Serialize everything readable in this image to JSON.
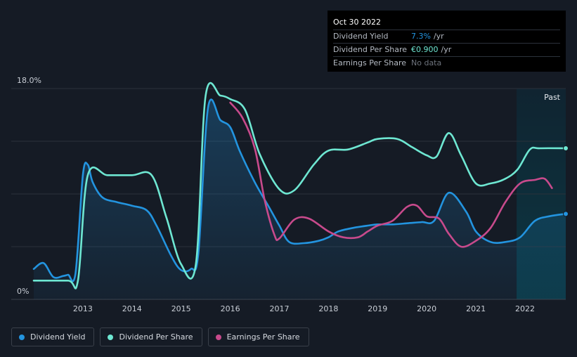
{
  "chart_data": {
    "type": "line",
    "y_axis": {
      "min": 0,
      "max": 18,
      "top_label": "18.0%",
      "bottom_label": "0%"
    },
    "x_ticks": [
      "2013",
      "2014",
      "2015",
      "2016",
      "2017",
      "2018",
      "2019",
      "2020",
      "2021",
      "2022"
    ],
    "x_range": [
      2012.0,
      2022.83
    ],
    "past_label": "Past",
    "forecast_start": 2021.83,
    "series": [
      {
        "name": "Dividend Yield",
        "key": "dividend_yield",
        "color": "#2394df",
        "area": true,
        "points": [
          [
            2012.0,
            2.6
          ],
          [
            2012.2,
            3.1
          ],
          [
            2012.4,
            1.9
          ],
          [
            2012.6,
            2.0
          ],
          [
            2012.7,
            2.1
          ],
          [
            2012.85,
            2.2
          ],
          [
            2013.0,
            10.6
          ],
          [
            2013.1,
            11.5
          ],
          [
            2013.2,
            10.0
          ],
          [
            2013.4,
            8.7
          ],
          [
            2013.7,
            8.3
          ],
          [
            2014.0,
            8.0
          ],
          [
            2014.3,
            7.6
          ],
          [
            2014.5,
            6.3
          ],
          [
            2014.8,
            3.7
          ],
          [
            2015.0,
            2.5
          ],
          [
            2015.2,
            2.6
          ],
          [
            2015.35,
            3.9
          ],
          [
            2015.55,
            16.4
          ],
          [
            2015.8,
            15.3
          ],
          [
            2016.0,
            14.7
          ],
          [
            2016.2,
            12.6
          ],
          [
            2016.5,
            10.0
          ],
          [
            2016.8,
            7.8
          ],
          [
            2017.0,
            6.3
          ],
          [
            2017.2,
            4.9
          ],
          [
            2017.5,
            4.8
          ],
          [
            2017.8,
            5.0
          ],
          [
            2018.0,
            5.3
          ],
          [
            2018.2,
            5.8
          ],
          [
            2018.5,
            6.1
          ],
          [
            2018.8,
            6.3
          ],
          [
            2019.0,
            6.4
          ],
          [
            2019.3,
            6.4
          ],
          [
            2019.6,
            6.5
          ],
          [
            2019.9,
            6.6
          ],
          [
            2020.15,
            6.7
          ],
          [
            2020.45,
            9.1
          ],
          [
            2020.8,
            7.5
          ],
          [
            2021.0,
            5.8
          ],
          [
            2021.3,
            4.9
          ],
          [
            2021.6,
            4.9
          ],
          [
            2021.9,
            5.3
          ],
          [
            2022.2,
            6.7
          ],
          [
            2022.5,
            7.1
          ],
          [
            2022.83,
            7.3
          ]
        ]
      },
      {
        "name": "Dividend Per Share",
        "key": "dividend_per_share",
        "color": "#6ee7d2",
        "area": false,
        "points": [
          [
            2012.0,
            1.6
          ],
          [
            2012.7,
            1.6
          ],
          [
            2012.9,
            1.6
          ],
          [
            2013.1,
            10.6
          ],
          [
            2013.5,
            10.6
          ],
          [
            2014.0,
            10.6
          ],
          [
            2014.4,
            10.6
          ],
          [
            2014.7,
            7.0
          ],
          [
            2015.0,
            3.0
          ],
          [
            2015.3,
            3.0
          ],
          [
            2015.5,
            17.4
          ],
          [
            2015.8,
            17.4
          ],
          [
            2016.0,
            17.1
          ],
          [
            2016.3,
            16.2
          ],
          [
            2016.6,
            12.4
          ],
          [
            2017.0,
            9.4
          ],
          [
            2017.3,
            9.3
          ],
          [
            2017.7,
            11.5
          ],
          [
            2018.0,
            12.7
          ],
          [
            2018.4,
            12.8
          ],
          [
            2018.8,
            13.4
          ],
          [
            2019.0,
            13.7
          ],
          [
            2019.4,
            13.7
          ],
          [
            2019.7,
            13.0
          ],
          [
            2020.0,
            12.3
          ],
          [
            2020.2,
            12.2
          ],
          [
            2020.45,
            14.2
          ],
          [
            2020.7,
            12.3
          ],
          [
            2021.0,
            9.9
          ],
          [
            2021.3,
            9.9
          ],
          [
            2021.6,
            10.3
          ],
          [
            2021.85,
            11.1
          ],
          [
            2022.1,
            12.8
          ],
          [
            2022.3,
            12.9
          ],
          [
            2022.83,
            12.9
          ]
        ]
      },
      {
        "name": "Earnings Per Share",
        "key": "earnings_per_share",
        "color": "#c84a8c",
        "area": false,
        "points": [
          [
            2016.0,
            16.8
          ],
          [
            2016.25,
            15.5
          ],
          [
            2016.5,
            12.9
          ],
          [
            2016.7,
            8.5
          ],
          [
            2016.9,
            5.5
          ],
          [
            2017.0,
            5.2
          ],
          [
            2017.3,
            6.8
          ],
          [
            2017.6,
            6.9
          ],
          [
            2018.0,
            5.8
          ],
          [
            2018.3,
            5.3
          ],
          [
            2018.6,
            5.3
          ],
          [
            2018.8,
            5.8
          ],
          [
            2019.0,
            6.3
          ],
          [
            2019.3,
            6.7
          ],
          [
            2019.6,
            7.9
          ],
          [
            2019.8,
            8.0
          ],
          [
            2020.0,
            7.1
          ],
          [
            2020.25,
            6.9
          ],
          [
            2020.45,
            5.6
          ],
          [
            2020.7,
            4.5
          ],
          [
            2021.0,
            5.0
          ],
          [
            2021.3,
            6.1
          ],
          [
            2021.6,
            8.3
          ],
          [
            2021.9,
            9.9
          ],
          [
            2022.2,
            10.2
          ],
          [
            2022.4,
            10.3
          ],
          [
            2022.55,
            9.5
          ]
        ]
      }
    ]
  },
  "tooltip": {
    "date": "Oct 30 2022",
    "rows": [
      {
        "label": "Dividend Yield",
        "value": "7.3%",
        "unit": "/yr"
      },
      {
        "label": "Dividend Per Share",
        "value": "€0.900",
        "unit": "/yr"
      },
      {
        "label": "Earnings Per Share",
        "value": "No data"
      }
    ]
  },
  "legend": [
    {
      "label": "Dividend Yield",
      "color": "#2394df"
    },
    {
      "label": "Dividend Per Share",
      "color": "#6ee7d2"
    },
    {
      "label": "Earnings Per Share",
      "color": "#c84a8c"
    }
  ],
  "colors": {
    "background": "#151b25",
    "forecast_band": "#0d2430",
    "grid": "#2a313b"
  }
}
